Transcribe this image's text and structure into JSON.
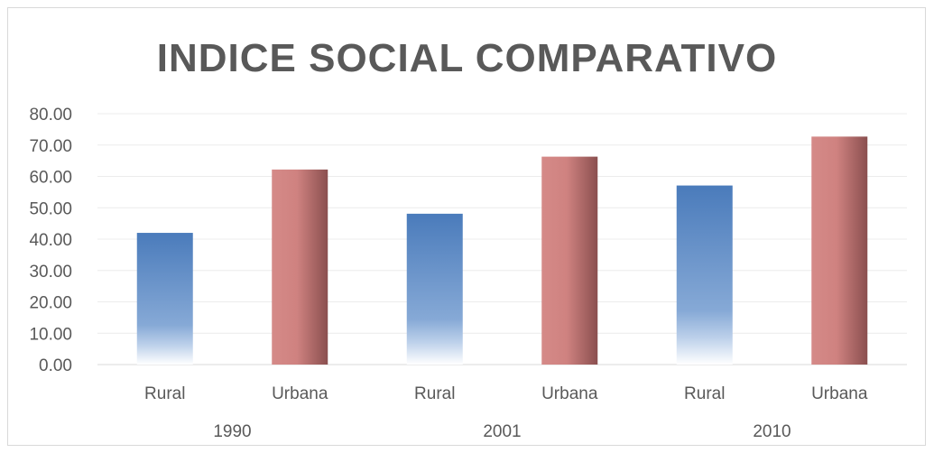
{
  "chart_data": {
    "type": "bar",
    "title": "INDICE SOCIAL COMPARATIVO",
    "groups": [
      "1990",
      "2001",
      "2010"
    ],
    "categories": [
      "Rural",
      "Urbana",
      "Rural",
      "Urbana",
      "Rural",
      "Urbana"
    ],
    "values": [
      42.0,
      62.2,
      48.1,
      66.3,
      57.1,
      72.7
    ],
    "ylim": [
      0,
      80
    ],
    "yticks": [
      "0.00",
      "10.00",
      "20.00",
      "30.00",
      "40.00",
      "50.00",
      "60.00",
      "70.00",
      "80.00"
    ],
    "grid": true,
    "legend": "none",
    "colors": {
      "Rural": "#4f81bd",
      "Urbana": "#c0504d",
      "grid": "#ececec",
      "text": "#595959"
    }
  }
}
